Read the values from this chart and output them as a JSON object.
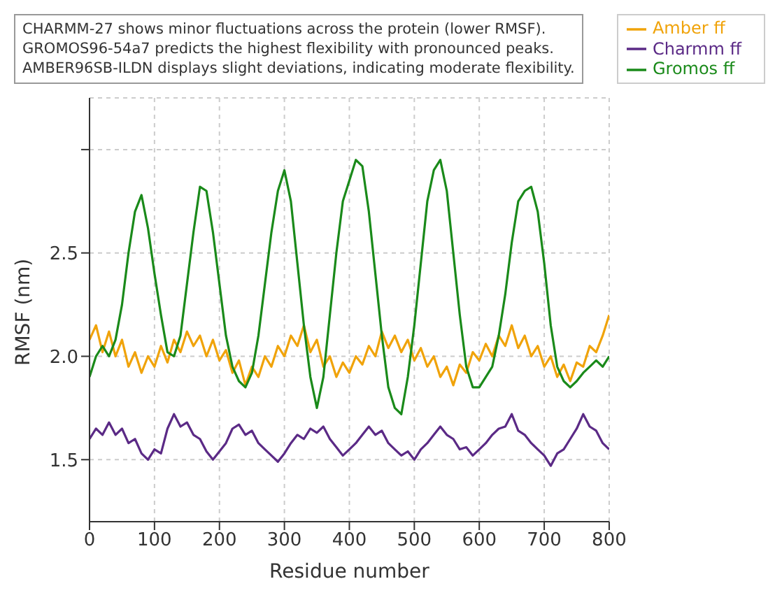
{
  "chart_data": {
    "type": "line",
    "xlabel": "Residue number",
    "ylabel": "RMSF (nm)",
    "annotations": [
      "CHARMM-27 shows minor fluctuations across the protein (lower RMSF).",
      "GROMOS96-54a7 predicts the highest flexibility with pronounced peaks.",
      "AMBER96SB-ILDN displays slight deviations, indicating moderate flexibility."
    ],
    "x": [
      0,
      10,
      20,
      30,
      40,
      50,
      60,
      70,
      80,
      90,
      100,
      110,
      120,
      130,
      140,
      150,
      160,
      170,
      180,
      190,
      200,
      210,
      220,
      230,
      240,
      250,
      260,
      270,
      280,
      290,
      300,
      310,
      320,
      330,
      340,
      350,
      360,
      370,
      380,
      390,
      400,
      410,
      420,
      430,
      440,
      450,
      460,
      470,
      480,
      490,
      500,
      510,
      520,
      530,
      540,
      550,
      560,
      570,
      580,
      590,
      600,
      610,
      620,
      630,
      640,
      650,
      660,
      670,
      680,
      690,
      700,
      710,
      720,
      730,
      740,
      750,
      760,
      770,
      780,
      790,
      800
    ],
    "series": [
      {
        "name": "Amber ff",
        "color": "#f0a30a",
        "values": [
          2.08,
          2.15,
          2.02,
          2.12,
          2.0,
          2.08,
          1.95,
          2.02,
          1.92,
          2.0,
          1.95,
          2.05,
          1.97,
          2.08,
          2.02,
          2.12,
          2.05,
          2.1,
          2.0,
          2.08,
          1.98,
          2.03,
          1.92,
          1.98,
          1.86,
          1.95,
          1.9,
          2.0,
          1.95,
          2.05,
          2.0,
          2.1,
          2.05,
          2.15,
          2.02,
          2.08,
          1.95,
          2.0,
          1.9,
          1.97,
          1.92,
          2.0,
          1.96,
          2.05,
          2.0,
          2.12,
          2.04,
          2.1,
          2.02,
          2.08,
          1.98,
          2.04,
          1.95,
          2.0,
          1.9,
          1.95,
          1.86,
          1.96,
          1.92,
          2.02,
          1.98,
          2.06,
          2.0,
          2.1,
          2.05,
          2.15,
          2.04,
          2.1,
          2.0,
          2.05,
          1.95,
          2.0,
          1.9,
          1.96,
          1.88,
          1.97,
          1.95,
          2.05,
          2.02,
          2.1,
          2.2
        ]
      },
      {
        "name": "Charmm ff",
        "color": "#5b2a86",
        "values": [
          1.6,
          1.65,
          1.62,
          1.68,
          1.62,
          1.65,
          1.58,
          1.6,
          1.53,
          1.5,
          1.55,
          1.53,
          1.65,
          1.72,
          1.66,
          1.68,
          1.62,
          1.6,
          1.54,
          1.5,
          1.54,
          1.58,
          1.65,
          1.67,
          1.62,
          1.64,
          1.58,
          1.55,
          1.52,
          1.49,
          1.53,
          1.58,
          1.62,
          1.6,
          1.65,
          1.63,
          1.66,
          1.6,
          1.56,
          1.52,
          1.55,
          1.58,
          1.62,
          1.66,
          1.62,
          1.64,
          1.58,
          1.55,
          1.52,
          1.54,
          1.5,
          1.55,
          1.58,
          1.62,
          1.66,
          1.62,
          1.6,
          1.55,
          1.56,
          1.52,
          1.55,
          1.58,
          1.62,
          1.65,
          1.66,
          1.72,
          1.64,
          1.62,
          1.58,
          1.55,
          1.52,
          1.47,
          1.53,
          1.55,
          1.6,
          1.65,
          1.72,
          1.66,
          1.64,
          1.58,
          1.55
        ]
      },
      {
        "name": "Gromos ff",
        "color": "#1a8a1a",
        "values": [
          1.9,
          2.0,
          2.05,
          2.0,
          2.08,
          2.25,
          2.5,
          2.7,
          2.78,
          2.62,
          2.4,
          2.2,
          2.02,
          2.0,
          2.1,
          2.35,
          2.6,
          2.82,
          2.8,
          2.6,
          2.35,
          2.1,
          1.95,
          1.88,
          1.85,
          1.92,
          2.1,
          2.35,
          2.6,
          2.8,
          2.9,
          2.75,
          2.45,
          2.15,
          1.9,
          1.75,
          1.9,
          2.2,
          2.5,
          2.75,
          2.85,
          2.95,
          2.92,
          2.7,
          2.4,
          2.1,
          1.85,
          1.75,
          1.72,
          1.9,
          2.15,
          2.45,
          2.75,
          2.9,
          2.95,
          2.8,
          2.5,
          2.2,
          1.95,
          1.85,
          1.85,
          1.9,
          1.95,
          2.1,
          2.3,
          2.55,
          2.75,
          2.8,
          2.82,
          2.7,
          2.45,
          2.15,
          1.95,
          1.88,
          1.85,
          1.88,
          1.92,
          1.95,
          1.98,
          1.95,
          2.0
        ]
      }
    ],
    "xlim": [
      0,
      800
    ],
    "xticks": [
      0,
      100,
      200,
      300,
      400,
      500,
      600,
      700,
      800
    ],
    "ylim": [
      1.2,
      3.25
    ],
    "yticks": [
      1.5,
      {
        "value": 2,
        "label": "2.0"
      },
      2.5,
      {
        "value": 3.0,
        "label": null
      }
    ],
    "grid": true,
    "legend": "top right",
    "line_style": "solid",
    "marker": "none"
  }
}
